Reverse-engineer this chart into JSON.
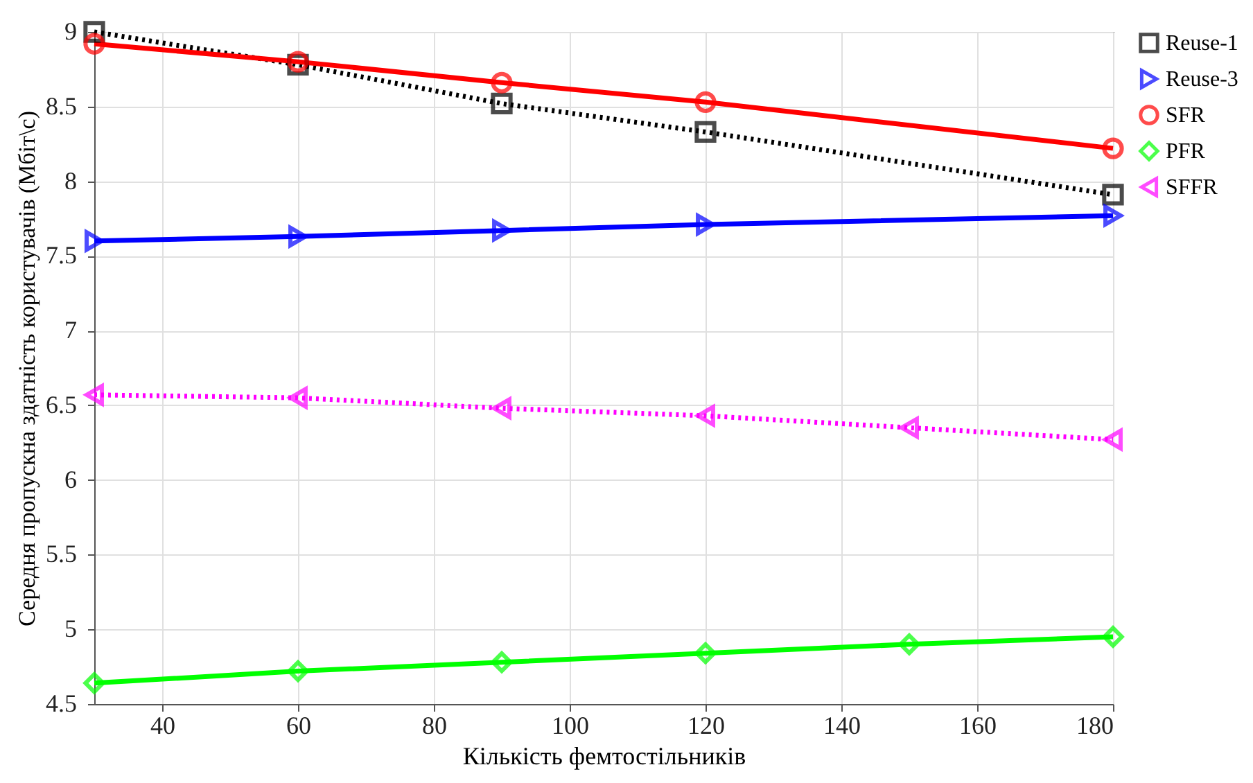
{
  "chart_data": {
    "type": "line",
    "xlabel": "Кількість фемтостільників",
    "ylabel": "Середня пропускна здатність користувачів (Мбіт\\c)",
    "x": [
      30,
      60,
      90,
      120,
      150,
      180
    ],
    "series": [
      {
        "name": "Reuse-1",
        "color": "#000000",
        "marker": "square",
        "line_style": "dotted",
        "values": [
          9.0,
          8.78,
          8.52,
          8.33,
          null,
          7.91
        ]
      },
      {
        "name": "Reuse-3",
        "color": "#0000ff",
        "marker": "triangle-right",
        "line_style": "solid",
        "values": [
          7.6,
          7.63,
          7.67,
          7.71,
          null,
          7.77
        ]
      },
      {
        "name": "SFR",
        "color": "#ff0000",
        "marker": "circle",
        "line_style": "solid",
        "values": [
          8.92,
          8.8,
          8.66,
          8.53,
          null,
          8.22
        ]
      },
      {
        "name": "PFR",
        "color": "#00ff00",
        "marker": "diamond",
        "line_style": "solid",
        "values": [
          4.64,
          4.72,
          4.78,
          4.84,
          4.9,
          4.95
        ]
      },
      {
        "name": "SFFR",
        "color": "#ff00ff",
        "marker": "triangle-left",
        "line_style": "dotted",
        "values": [
          6.57,
          6.55,
          6.48,
          6.43,
          6.35,
          6.27
        ]
      }
    ],
    "xlim": [
      30,
      180
    ],
    "xticks": [
      40,
      60,
      80,
      100,
      120,
      140,
      160,
      180
    ],
    "ylim": [
      4.5,
      9
    ],
    "yticks": [
      4.5,
      5,
      5.5,
      6,
      6.5,
      7,
      7.5,
      8,
      8.5,
      9
    ],
    "grid": true,
    "legend": "right"
  }
}
